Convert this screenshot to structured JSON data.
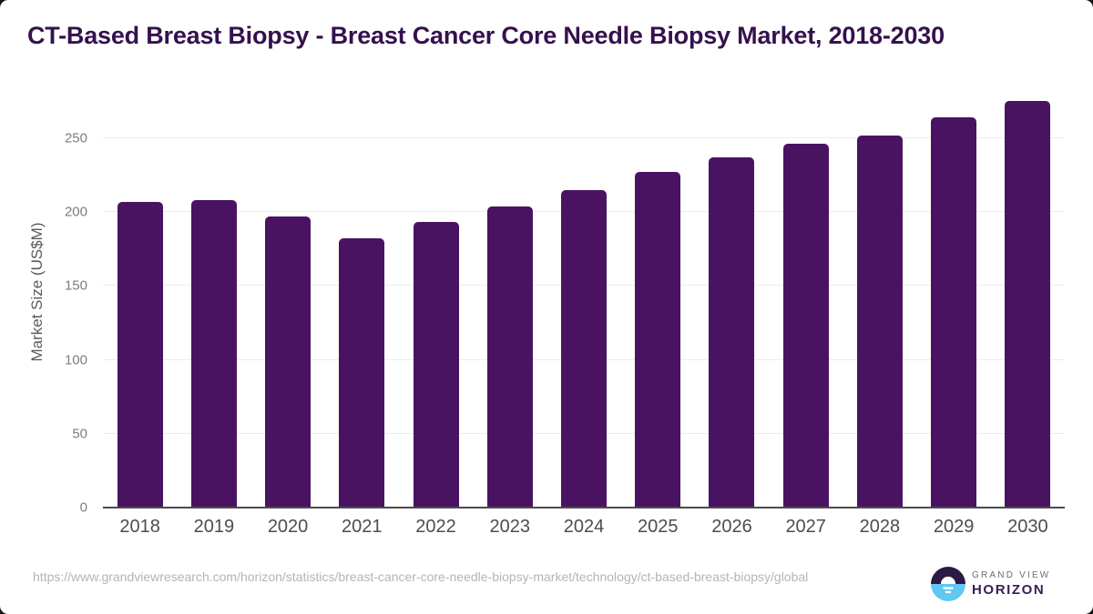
{
  "title": "CT-Based Breast Biopsy - Breast Cancer Core Needle Biopsy Market, 2018-2030",
  "chart_data": {
    "type": "bar",
    "title": "CT-Based Breast Biopsy - Breast Cancer Core Needle Biopsy Market, 2018-2030",
    "categories": [
      "2018",
      "2019",
      "2020",
      "2021",
      "2022",
      "2023",
      "2024",
      "2025",
      "2026",
      "2027",
      "2028",
      "2029",
      "2030"
    ],
    "values": [
      207,
      208,
      197,
      182,
      193,
      204,
      215,
      227,
      237,
      246,
      252,
      264,
      275
    ],
    "xlabel": "",
    "ylabel": "Market Size (US$M)",
    "yticks": [
      0,
      50,
      100,
      150,
      200,
      250
    ],
    "ylim": [
      0,
      285
    ],
    "grid": "horizontal",
    "legend": "none",
    "bar_color": "#491362"
  },
  "footer": {
    "source_url": "https://www.grandviewresearch.com/horizon/statistics/breast-cancer-core-needle-biopsy-market/technology/ct-based-breast-biopsy/global",
    "logo": {
      "brand_line1": "GRAND VIEW",
      "brand_line2": "HORIZON"
    }
  },
  "colors": {
    "bar": "#491362",
    "title_text": "#35114e",
    "x_tick_text": "#4d4d4d",
    "y_tick_text": "#7d7d7d",
    "y_axis_title_text": "#5a5a5a",
    "gridline": "#ececec",
    "axis_line": "#4b4b4b",
    "source_text": "#b4b4b4",
    "logo_navy": "#2b1a43",
    "logo_blue": "#5ec9f2",
    "logo_horizon_text": "#3a1b56",
    "logo_grandview_text": "#6b6b76"
  }
}
